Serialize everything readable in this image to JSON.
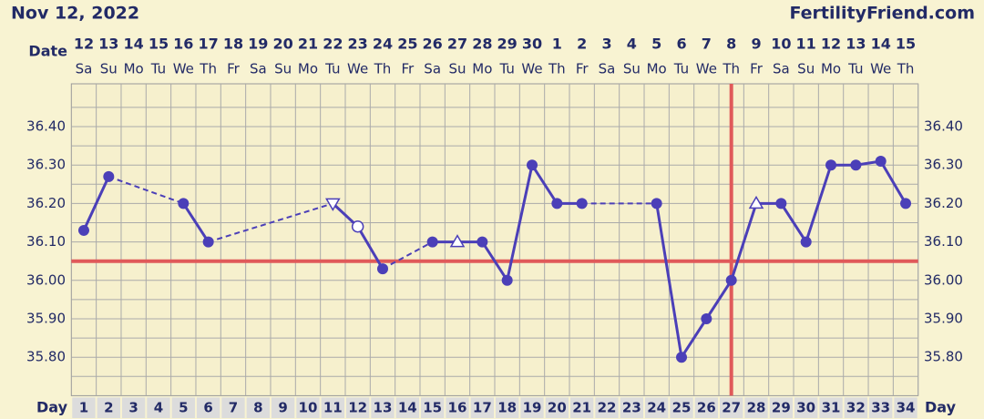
{
  "header": {
    "date": "Nov 12, 2022",
    "site": "FertilityFriend.com"
  },
  "chart_data": {
    "type": "line",
    "date_label": "Date",
    "day_label": "Day",
    "dates": [
      "12",
      "13",
      "14",
      "15",
      "16",
      "17",
      "18",
      "19",
      "20",
      "21",
      "22",
      "23",
      "24",
      "25",
      "26",
      "27",
      "28",
      "29",
      "30",
      "1",
      "2",
      "3",
      "4",
      "5",
      "6",
      "7",
      "8",
      "9",
      "10",
      "11",
      "12",
      "13",
      "14",
      "15"
    ],
    "weekdays": [
      "Sa",
      "Su",
      "Mo",
      "Tu",
      "We",
      "Th",
      "Fr",
      "Sa",
      "Su",
      "Mo",
      "Tu",
      "We",
      "Th",
      "Fr",
      "Sa",
      "Su",
      "Mo",
      "Tu",
      "We",
      "Th",
      "Fr",
      "Sa",
      "Su",
      "Mo",
      "Tu",
      "We",
      "Th",
      "Fr",
      "Sa",
      "Su",
      "Mo",
      "Tu",
      "We",
      "Th"
    ],
    "x": [
      1,
      2,
      3,
      4,
      5,
      6,
      7,
      8,
      9,
      10,
      11,
      12,
      13,
      14,
      15,
      16,
      17,
      18,
      19,
      20,
      21,
      22,
      23,
      24,
      25,
      26,
      27,
      28,
      29,
      30,
      31,
      32,
      33,
      34
    ],
    "xlim": [
      0.5,
      34.5
    ],
    "ylim": [
      35.7,
      36.5
    ],
    "yticks": [
      {
        "value": 35.8,
        "label": "35.80"
      },
      {
        "value": 35.9,
        "label": "35.90"
      },
      {
        "value": 36.0,
        "label": "36.00"
      },
      {
        "value": 36.1,
        "label": "36.10"
      },
      {
        "value": 36.2,
        "label": "36.20"
      },
      {
        "value": 36.3,
        "label": "36.30"
      },
      {
        "value": 36.4,
        "label": "36.40"
      }
    ],
    "grid": true,
    "coverline": 36.05,
    "coverline_color": "#e05a5a",
    "ovulation_day": 27,
    "series": [
      {
        "color": "#4b3fb8",
        "values": [
          36.13,
          36.27,
          null,
          null,
          36.2,
          36.1,
          null,
          null,
          null,
          null,
          36.2,
          36.14,
          36.03,
          null,
          36.1,
          36.1,
          36.1,
          36.0,
          36.3,
          36.2,
          36.2,
          null,
          null,
          36.2,
          35.8,
          35.9,
          36.0,
          36.2,
          36.2,
          36.1,
          36.3,
          36.3,
          36.31,
          36.2
        ],
        "markers": [
          "dot",
          "dot",
          null,
          null,
          "dot",
          "dot",
          null,
          null,
          null,
          null,
          "triangle-down-open",
          "circle-open",
          "dot",
          null,
          "dot",
          "triangle-up-open",
          "dot",
          "dot",
          "dot",
          "dot",
          "dot",
          null,
          null,
          "dot",
          "dot",
          "dot",
          "dot",
          "triangle-up-open",
          "dot",
          "dot",
          "dot",
          "dot",
          "dot",
          "dot"
        ]
      }
    ]
  }
}
